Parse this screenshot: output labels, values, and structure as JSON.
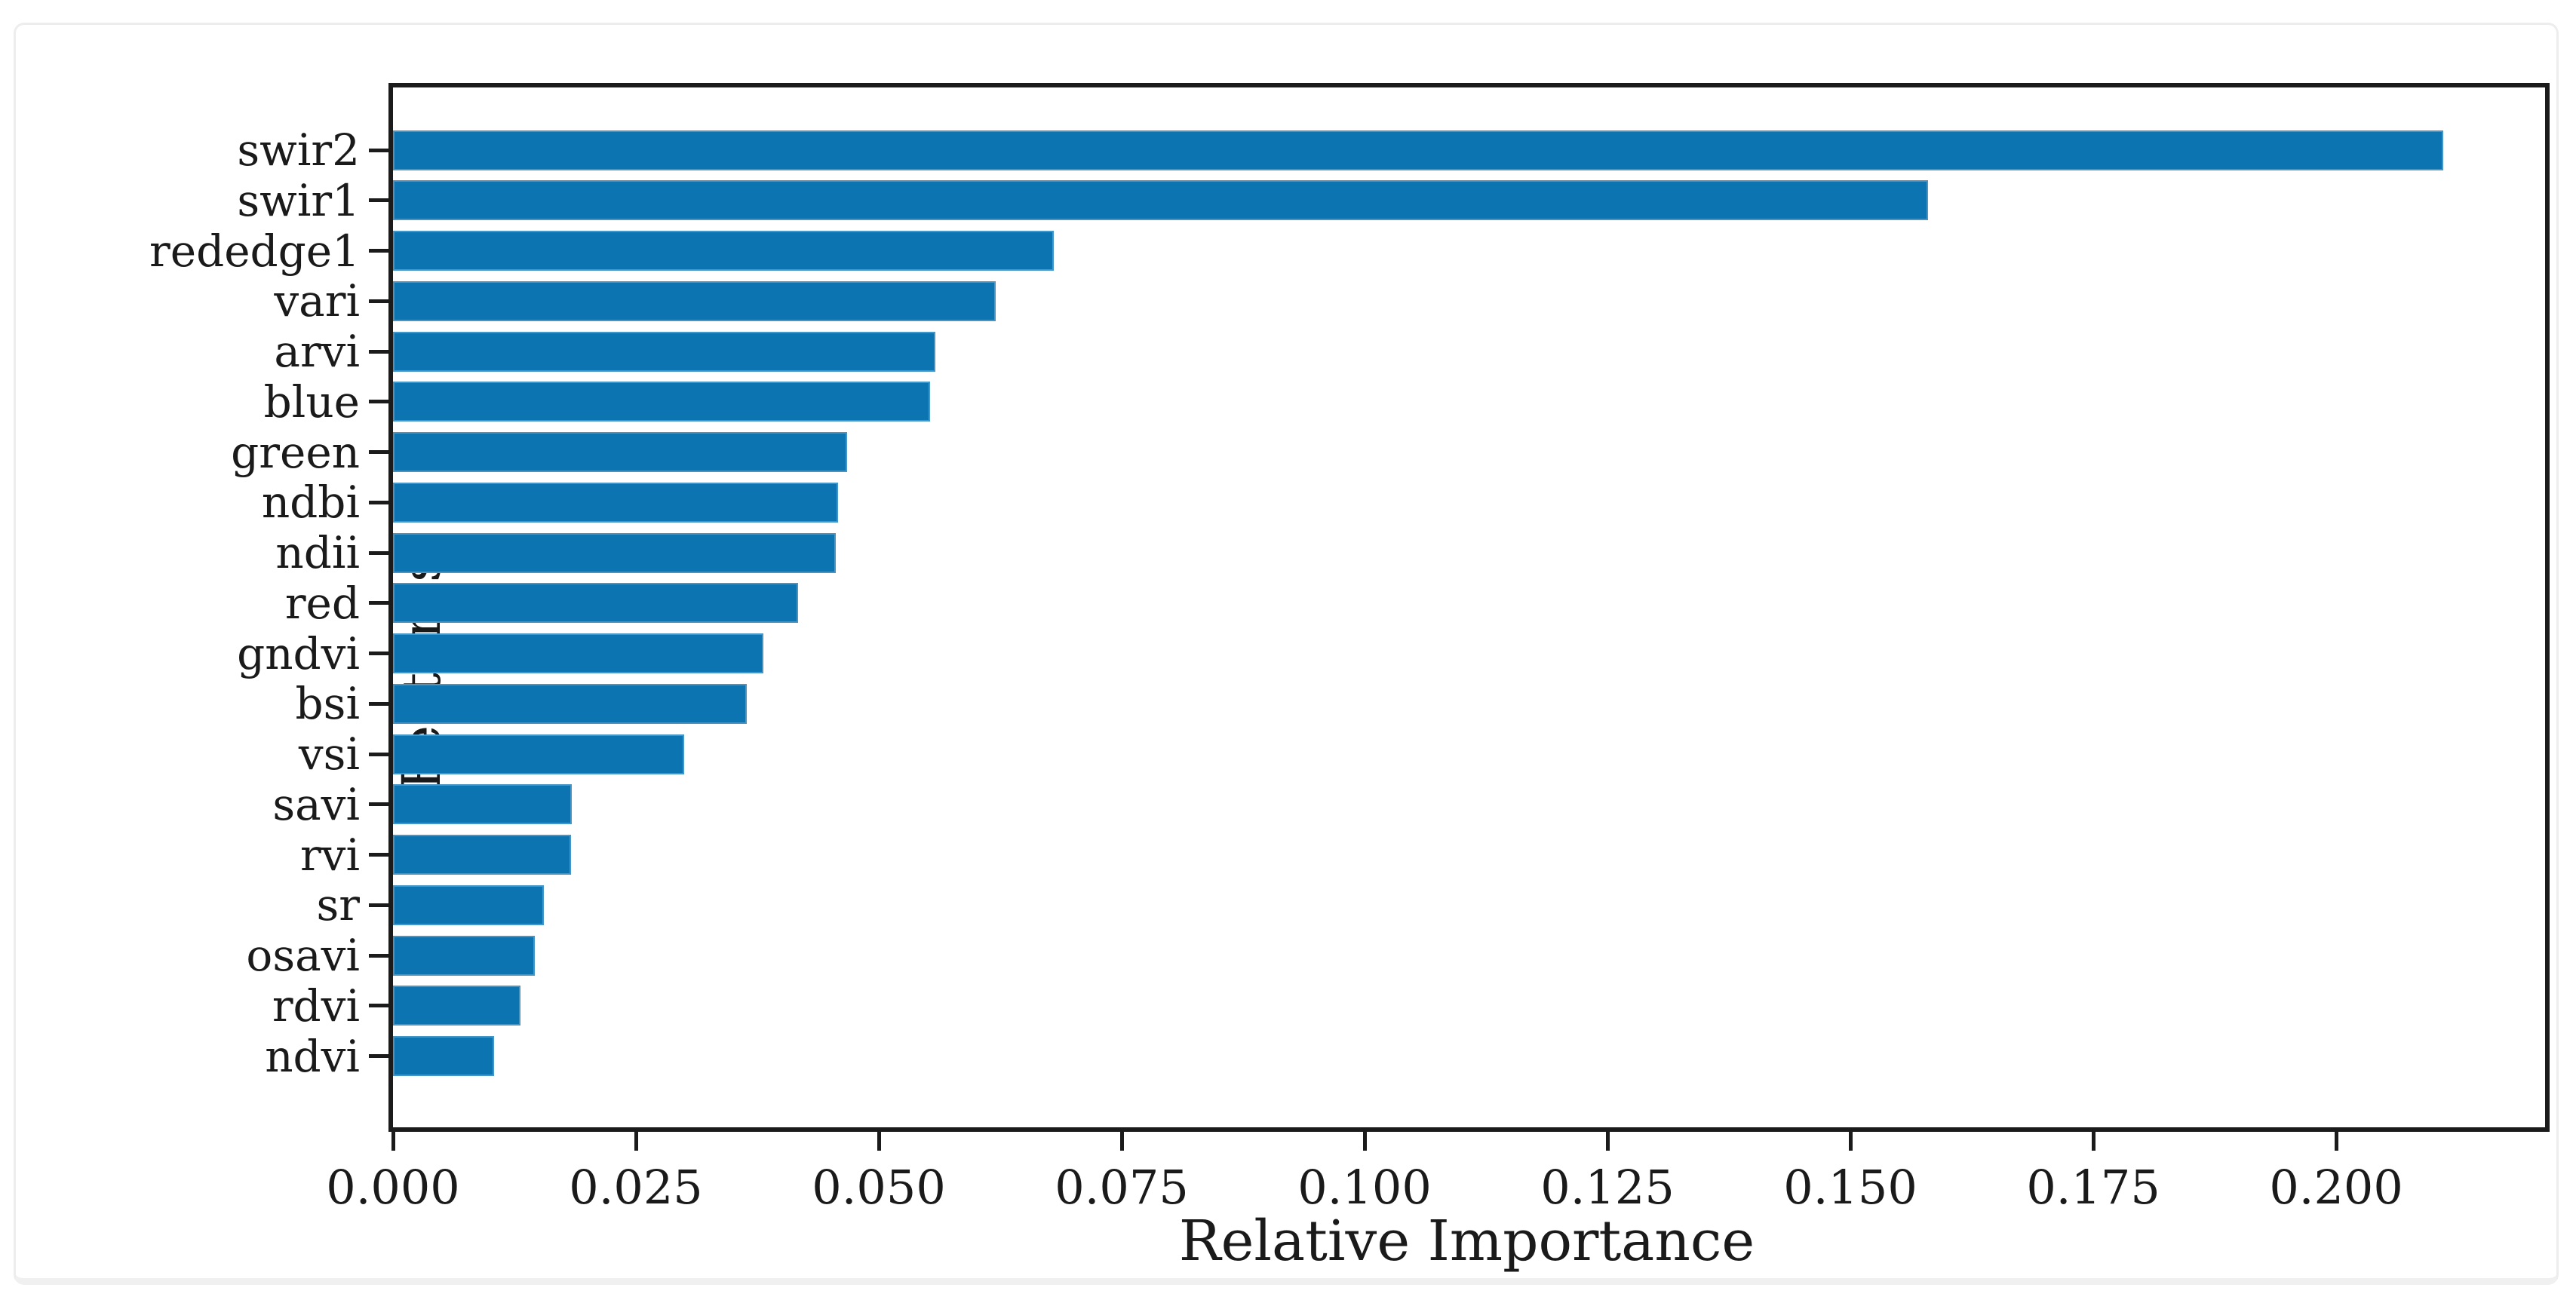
{
  "chart_data": {
    "type": "bar",
    "orientation": "horizontal",
    "title": "",
    "xlabel": "Relative Importance",
    "ylabel": "Features",
    "categories": [
      "swir2",
      "swir1",
      "rededge1",
      "vari",
      "arvi",
      "blue",
      "green",
      "ndbi",
      "ndii",
      "red",
      "gndvi",
      "bsi",
      "vsi",
      "savi",
      "rvi",
      "sr",
      "osavi",
      "rdvi",
      "ndvi"
    ],
    "values": [
      0.211,
      0.158,
      0.068,
      0.062,
      0.0558,
      0.0553,
      0.0467,
      0.0458,
      0.0456,
      0.0417,
      0.0381,
      0.0364,
      0.03,
      0.0184,
      0.0183,
      0.0155,
      0.0146,
      0.0131,
      0.0104
    ],
    "xlim": [
      0,
      0.2215
    ],
    "x_tick_values": [
      0,
      0.025,
      0.05,
      0.075,
      0.1,
      0.125,
      0.15,
      0.175,
      0.2
    ],
    "x_tick_labels": [
      "0.000",
      "0.025",
      "0.050",
      "0.075",
      "0.100",
      "0.125",
      "0.150",
      "0.175",
      "0.200"
    ],
    "grid": false,
    "legend": null,
    "bar_color": "#0c75b1",
    "spine_color": "#1b1b1b"
  }
}
